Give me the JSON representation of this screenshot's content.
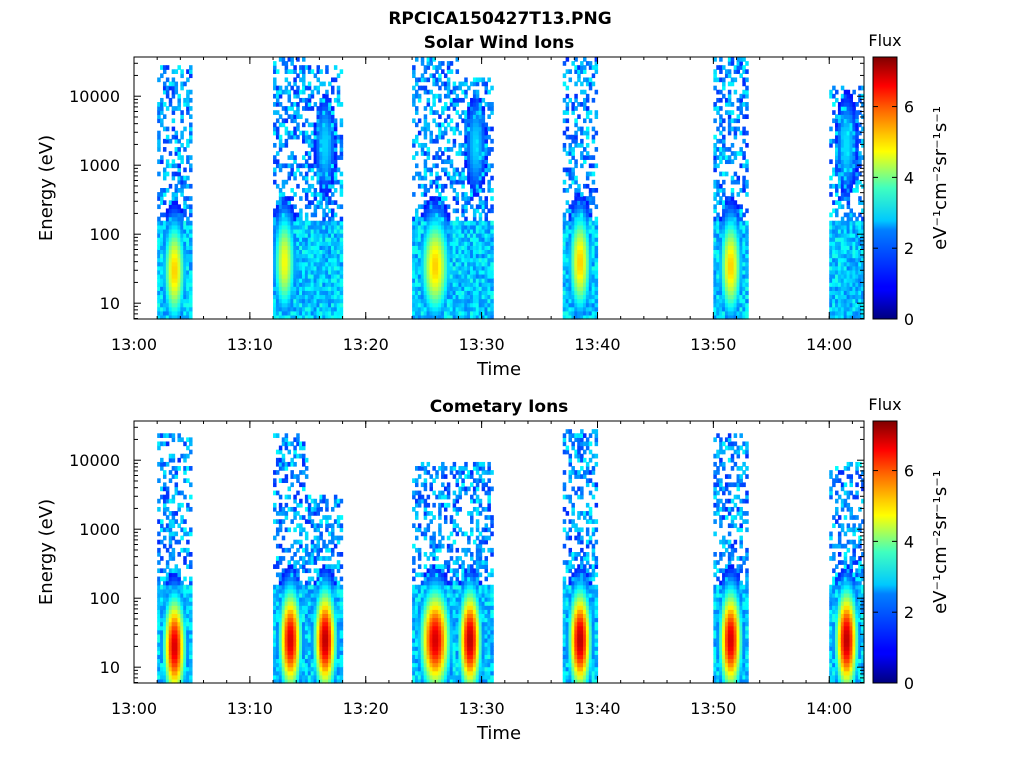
{
  "figure_title": "RPCICA150427T13.PNG",
  "chart_data": [
    {
      "type": "heatmap",
      "title": "Solar Wind Ions",
      "xlabel": "Time",
      "ylabel": "Energy (eV)",
      "x_ticks": [
        "13:00",
        "13:10",
        "13:20",
        "13:30",
        "13:40",
        "13:50",
        "14:00"
      ],
      "x_range": [
        "13:00",
        "14:03"
      ],
      "y_scale": "log",
      "y_ticks": [
        "10",
        "100",
        "1000",
        "10000"
      ],
      "y_range": [
        5.9,
        37000
      ],
      "colorbar": {
        "label": "Flux",
        "units": "eV⁻¹cm⁻²sr⁻¹s⁻¹",
        "ticks": [
          "0",
          "2",
          "4",
          "6"
        ],
        "range": [
          0,
          7.4
        ],
        "colormap": "jet"
      },
      "bursts": [
        {
          "start": "13:02",
          "end": "13:05",
          "peak": "13:03:30",
          "peak_energy_ev": 30,
          "peak_flux": 5.0,
          "max_energy_ev": 30000
        },
        {
          "start": "13:12",
          "end": "13:15",
          "peak": "13:13:00",
          "peak_energy_ev": 40,
          "peak_flux": 4.6,
          "max_energy_ev": 35000
        },
        {
          "start": "13:15",
          "end": "13:18",
          "peak": "13:16:30",
          "peak_energy_ev": 2000,
          "peak_flux": 2.5,
          "max_energy_ev": 30000
        },
        {
          "start": "13:24",
          "end": "13:28",
          "peak": "13:26:00",
          "peak_energy_ev": 35,
          "peak_flux": 5.0,
          "max_energy_ev": 35000
        },
        {
          "start": "13:28",
          "end": "13:31",
          "peak": "13:29:30",
          "peak_energy_ev": 2000,
          "peak_flux": 2.5,
          "max_energy_ev": 20000
        },
        {
          "start": "13:37",
          "end": "13:40",
          "peak": "13:38:30",
          "peak_energy_ev": 40,
          "peak_flux": 5.0,
          "max_energy_ev": 37000
        },
        {
          "start": "13:50",
          "end": "13:53",
          "peak": "13:51:30",
          "peak_energy_ev": 35,
          "peak_flux": 5.0,
          "max_energy_ev": 37000
        },
        {
          "start": "14:00",
          "end": "14:03",
          "peak": "14:01:30",
          "peak_energy_ev": 2000,
          "peak_flux": 2.6,
          "max_energy_ev": 15000
        }
      ]
    },
    {
      "type": "heatmap",
      "title": "Cometary Ions",
      "xlabel": "Time",
      "ylabel": "Energy (eV)",
      "x_ticks": [
        "13:00",
        "13:10",
        "13:20",
        "13:30",
        "13:40",
        "13:50",
        "14:00"
      ],
      "x_range": [
        "13:00",
        "14:03"
      ],
      "y_scale": "log",
      "y_ticks": [
        "10",
        "100",
        "1000",
        "10000"
      ],
      "y_range": [
        5.9,
        37000
      ],
      "colorbar": {
        "label": "Flux",
        "units": "eV⁻¹cm⁻²sr⁻¹s⁻¹",
        "ticks": [
          "0",
          "2",
          "4",
          "6"
        ],
        "range": [
          0,
          7.4
        ],
        "colormap": "jet"
      },
      "bursts": [
        {
          "start": "13:02",
          "end": "13:05",
          "peak": "13:03:30",
          "peak_energy_ev": 20,
          "peak_flux": 6.8,
          "max_energy_ev": 25000
        },
        {
          "start": "13:12",
          "end": "13:15",
          "peak": "13:13:30",
          "peak_energy_ev": 25,
          "peak_flux": 6.8,
          "max_energy_ev": 25000
        },
        {
          "start": "13:15",
          "end": "13:18",
          "peak": "13:16:30",
          "peak_energy_ev": 25,
          "peak_flux": 7.0,
          "max_energy_ev": 3000
        },
        {
          "start": "13:24",
          "end": "13:28",
          "peak": "13:26:00",
          "peak_energy_ev": 25,
          "peak_flux": 6.8,
          "max_energy_ev": 10000
        },
        {
          "start": "13:28",
          "end": "13:31",
          "peak": "13:29:00",
          "peak_energy_ev": 25,
          "peak_flux": 7.0,
          "max_energy_ev": 10000
        },
        {
          "start": "13:37",
          "end": "13:40",
          "peak": "13:38:30",
          "peak_energy_ev": 25,
          "peak_flux": 7.0,
          "max_energy_ev": 30000
        },
        {
          "start": "13:50",
          "end": "13:53",
          "peak": "13:51:30",
          "peak_energy_ev": 25,
          "peak_flux": 6.8,
          "max_energy_ev": 25000
        },
        {
          "start": "14:00",
          "end": "14:03",
          "peak": "14:01:30",
          "peak_energy_ev": 25,
          "peak_flux": 7.0,
          "max_energy_ev": 10000
        }
      ]
    }
  ]
}
